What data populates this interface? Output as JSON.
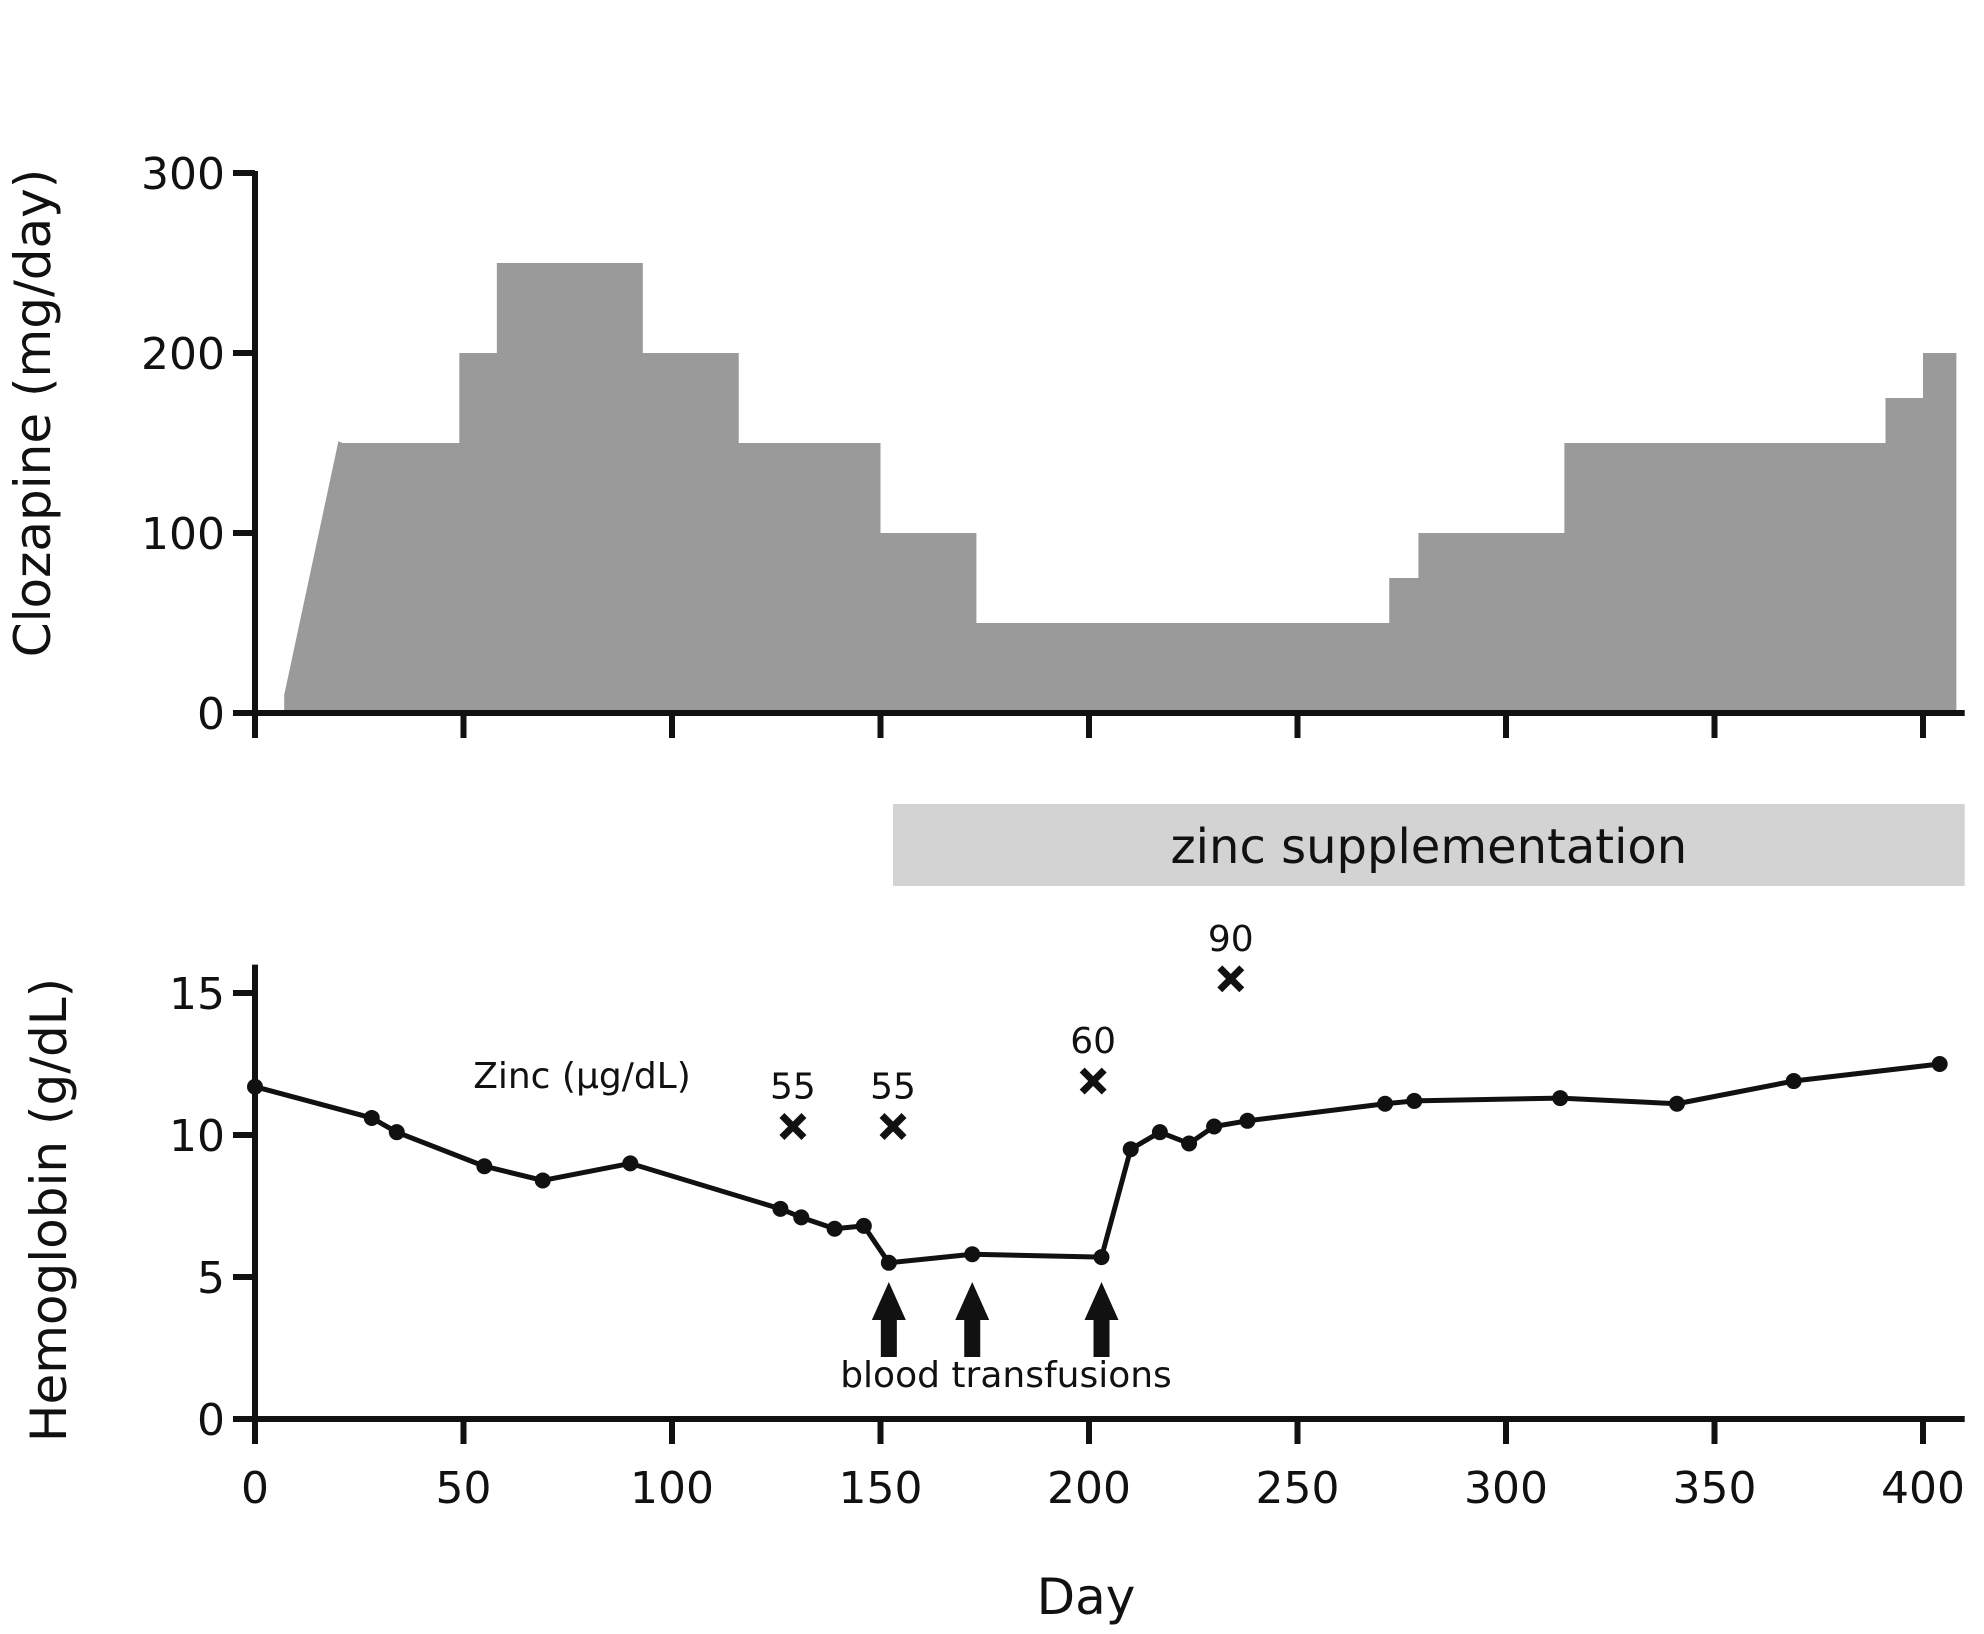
{
  "chart_data": [
    {
      "type": "area",
      "ylabel": "Clozapine (mg/day)",
      "xlabel": "",
      "xlim": [
        0,
        410
      ],
      "ylim": [
        0,
        300
      ],
      "yticks": [
        0,
        100,
        200,
        300
      ],
      "xticks": [
        0,
        50,
        100,
        150,
        200,
        250,
        300,
        350,
        400
      ],
      "color": "#9a9a9a",
      "series": [
        {
          "x": [
            7,
            20,
            21,
            49,
            49,
            58,
            58,
            93,
            93,
            116,
            116,
            150,
            150,
            173,
            173,
            272,
            272,
            279,
            279,
            314,
            314,
            391,
            391,
            400,
            400,
            408
          ],
          "y": [
            10,
            151,
            150,
            150,
            200,
            200,
            250,
            250,
            200,
            200,
            150,
            150,
            100,
            100,
            50,
            50,
            75,
            75,
            100,
            100,
            150,
            150,
            175,
            175,
            200,
            200
          ]
        }
      ]
    },
    {
      "type": "line",
      "ylabel": "Hemoglobin (g/dL)",
      "xlabel": "Day",
      "xlim": [
        0,
        410
      ],
      "ylim": [
        0,
        16
      ],
      "yticks": [
        0,
        5,
        10,
        15
      ],
      "xticks": [
        0,
        50,
        100,
        150,
        200,
        250,
        300,
        350,
        400
      ],
      "xtick_labels": [
        "0",
        "50",
        "100",
        "150",
        "200",
        "250",
        "300",
        "350",
        "400"
      ],
      "color": "#111111",
      "series": [
        {
          "x": [
            0,
            28,
            34,
            55,
            69,
            90,
            126,
            131,
            139,
            146,
            152,
            172,
            203,
            210,
            217,
            224,
            230,
            238,
            271,
            278,
            313,
            341,
            369,
            404
          ],
          "y": [
            11.7,
            10.6,
            10.1,
            8.9,
            8.4,
            9.0,
            7.4,
            7.1,
            6.7,
            6.8,
            5.5,
            5.8,
            5.7,
            9.5,
            10.1,
            9.7,
            10.3,
            10.5,
            11.1,
            11.2,
            11.3,
            11.1,
            11.9,
            12.5
          ]
        }
      ],
      "zinc": {
        "label": "Zinc (μg/dL)",
        "points": [
          {
            "day": 129,
            "marker_y": 10.3,
            "value": "55"
          },
          {
            "day": 153,
            "marker_y": 10.3,
            "value": "55"
          },
          {
            "day": 201,
            "marker_y": 11.9,
            "value": "60"
          },
          {
            "day": 234,
            "marker_y": 15.5,
            "value": "90"
          }
        ]
      },
      "transfusions": {
        "label": "blood transfusions",
        "days": [
          152,
          172,
          203
        ]
      }
    }
  ],
  "zinc_band": {
    "label": "zinc supplementation",
    "start_day": 153,
    "end_day": 410
  }
}
